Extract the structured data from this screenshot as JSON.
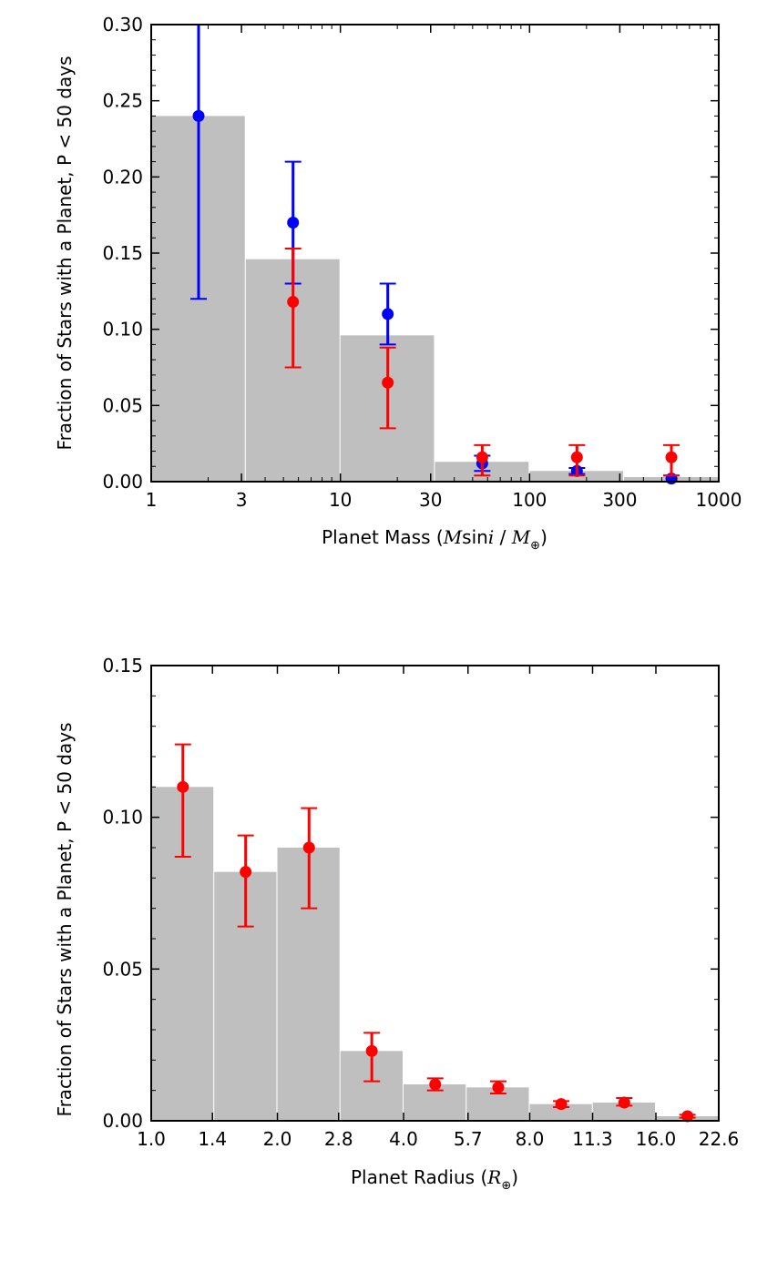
{
  "chart_data": [
    {
      "type": "bar+errorbar",
      "title": "",
      "xscale": "log",
      "xlim": [
        1,
        1000
      ],
      "ylim": [
        0,
        0.3
      ],
      "ylabel": "Fraction of Stars with a Planet, P < 50 days",
      "xlabel_prefix": "Planet Mass (",
      "xlabel_M": "M",
      "xlabel_sin": "sin",
      "xlabel_i": "i",
      "xlabel_slash": " / ",
      "xlabel_Msub": "M",
      "xlabel_sub": "⊕",
      "xlabel_suffix": ")",
      "xticks": [
        1,
        3,
        10,
        30,
        100,
        300,
        1000
      ],
      "xtick_labels": [
        "1",
        "3",
        "10",
        "30",
        "100",
        "300",
        "1000"
      ],
      "yticks": [
        0,
        0.05,
        0.1,
        0.15,
        0.2,
        0.25,
        0.3
      ],
      "ytick_labels": [
        "0.00",
        "0.05",
        "0.10",
        "0.15",
        "0.20",
        "0.25",
        "0.30"
      ],
      "bars": {
        "color": "#bfbfbf",
        "edges": [
          1,
          3.16,
          10,
          31.6,
          100,
          316,
          1000
        ],
        "values": [
          0.24,
          0.146,
          0.096,
          0.013,
          0.007,
          0.003
        ]
      },
      "series": [
        {
          "name": "blue",
          "color": "#0000ff",
          "x": [
            1.78,
            5.62,
            17.8,
            56.2,
            178,
            562
          ],
          "y": [
            0.24,
            0.17,
            0.11,
            0.012,
            0.007,
            0.002
          ],
          "err_low": [
            0.12,
            0.13,
            0.09,
            0.007,
            0.005,
            0.0
          ],
          "err_high": [
            0.3,
            0.21,
            0.13,
            0.017,
            0.009,
            0.004
          ]
        },
        {
          "name": "red",
          "color": "#ff0000",
          "x": [
            5.62,
            17.8,
            56.2,
            178,
            562
          ],
          "y": [
            0.118,
            0.065,
            0.016,
            0.016,
            0.016
          ],
          "err_low": [
            0.075,
            0.035,
            0.004,
            0.004,
            0.004
          ],
          "err_high": [
            0.153,
            0.088,
            0.024,
            0.024,
            0.024
          ]
        }
      ]
    },
    {
      "type": "bar+errorbar",
      "title": "",
      "xscale": "log2",
      "xlim": [
        1.0,
        22.6
      ],
      "ylim": [
        0,
        0.15
      ],
      "ylabel": "Fraction of Stars with a Planet, P < 50 days",
      "xlabel_prefix": "Planet Radius (",
      "xlabel_R": "R",
      "xlabel_sub": "⊕",
      "xlabel_suffix": ")",
      "xticks": [
        1.0,
        1.4,
        2.0,
        2.8,
        4.0,
        5.7,
        8.0,
        11.3,
        16.0,
        22.6
      ],
      "xtick_labels": [
        "1.0",
        "1.4",
        "2.0",
        "2.8",
        "4.0",
        "5.7",
        "8.0",
        "11.3",
        "16.0",
        "22.6"
      ],
      "yticks": [
        0,
        0.05,
        0.1,
        0.15
      ],
      "ytick_labels": [
        "0.00",
        "0.05",
        "0.10",
        "0.15"
      ],
      "bars": {
        "color": "#bfbfbf",
        "edges": [
          1.0,
          1.414,
          2.0,
          2.828,
          4.0,
          5.657,
          8.0,
          11.314,
          16.0,
          22.627
        ],
        "values": [
          0.11,
          0.082,
          0.09,
          0.023,
          0.012,
          0.011,
          0.0055,
          0.006,
          0.0015
        ]
      },
      "series": [
        {
          "name": "red",
          "color": "#ff0000",
          "x": [
            1.19,
            1.68,
            2.38,
            3.36,
            4.76,
            6.73,
            9.51,
            13.45,
            19.03
          ],
          "y": [
            0.11,
            0.082,
            0.09,
            0.023,
            0.012,
            0.011,
            0.0055,
            0.006,
            0.0015
          ],
          "err_low": [
            0.087,
            0.064,
            0.07,
            0.013,
            0.01,
            0.009,
            0.0045,
            0.005,
            0.001
          ],
          "err_high": [
            0.124,
            0.094,
            0.103,
            0.029,
            0.014,
            0.013,
            0.0065,
            0.0075,
            0.002
          ]
        }
      ]
    }
  ]
}
